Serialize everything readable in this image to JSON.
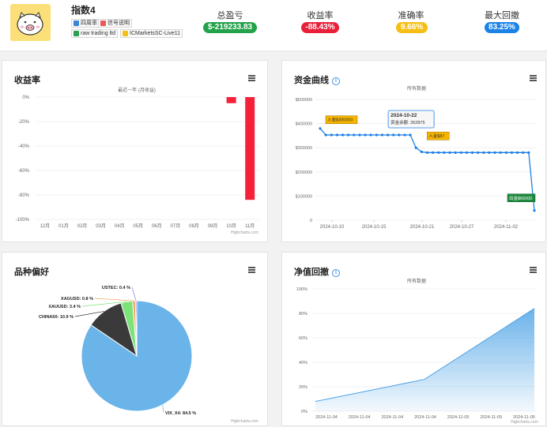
{
  "header": {
    "title": "指数4",
    "tags": [
      "四周率",
      "信号说明",
      "raw trading ltd",
      "ICMarketsSC-Live11"
    ],
    "stats": [
      {
        "label": "总盈亏",
        "value": "$-219233.83",
        "color": "#22a24a"
      },
      {
        "label": "收益率",
        "value": "-88.43%",
        "color": "#e8203a"
      },
      {
        "label": "准确率",
        "value": "9.66%",
        "color": "#f5bf16"
      },
      {
        "label": "最大回撤",
        "value": "83.25%",
        "color": "#1b82e8"
      }
    ]
  },
  "colors": {
    "bar": "#f5203a",
    "line": "#1e7fe6",
    "annotation": "#f7b500",
    "area": "#6ab2ea"
  },
  "icons": {
    "menu": "hamburger-menu-icon",
    "info": "info-circle-icon",
    "avatar": "piggy-mascot"
  },
  "cards": {
    "returns": {
      "title": "收益率",
      "subtitle": "最近一年 (月收益)",
      "credit": "Highcharts.com"
    },
    "equity": {
      "title": "资金曲线",
      "subtitle": "所有数据",
      "credit": "Highcharts.com",
      "annotations": [
        "入金$300000",
        "入金$87",
        "出金$65000"
      ],
      "tooltip": {
        "date": "2024-10-22",
        "label": "资金余额:",
        "value": "352875"
      }
    },
    "pie": {
      "title": "品种偏好",
      "credit": "Highcharts.com"
    },
    "drawdown": {
      "title": "净值回撤",
      "subtitle": "所有数据",
      "credit": "Highcharts.com"
    }
  },
  "chart_data": [
    {
      "type": "bar",
      "title": "收益率",
      "subtitle": "最近一年 (月收益)",
      "categories": [
        "12月",
        "01月",
        "02月",
        "03月",
        "04月",
        "05月",
        "06月",
        "07月",
        "08月",
        "09月",
        "10月",
        "11月"
      ],
      "values": [
        0,
        0,
        0,
        0,
        0,
        0,
        0,
        0,
        0,
        0,
        -5,
        -84
      ],
      "ylim": [
        -100,
        0
      ],
      "yticks": [
        "0%",
        "-20%",
        "-40%",
        "-60%",
        "-80%",
        "-100%"
      ]
    },
    {
      "type": "line",
      "title": "资金曲线",
      "subtitle": "所有数据",
      "xticks": [
        "2024-10-10",
        "2024-10-15",
        "2024-10-21",
        "2024-10-27",
        "2024-11-02"
      ],
      "yticks": [
        "0",
        "$100000",
        "$200000",
        "$300000",
        "$400000",
        "$500000"
      ],
      "ylim": [
        0,
        500000
      ],
      "values": [
        380000,
        352875,
        352875,
        352875,
        352875,
        352875,
        352875,
        352875,
        352875,
        352875,
        352875,
        352875,
        352875,
        352875,
        352875,
        352875,
        352875,
        300000,
        283000,
        280000,
        280000,
        280000,
        280000,
        280000,
        280000,
        280000,
        280000,
        280000,
        280000,
        280000,
        280000,
        280000,
        280000,
        280000,
        280000,
        280000,
        280000,
        280000,
        40000
      ]
    },
    {
      "type": "pie",
      "title": "品种偏好",
      "slices": [
        {
          "name": "VIX_X4",
          "value": 84.5,
          "label": "VIX_X4: 84.5 %",
          "color": "#6ab4ea"
        },
        {
          "name": "CHINA50",
          "value": 10.9,
          "label": "CHINA50: 10.9 %",
          "color": "#3a3a3a"
        },
        {
          "name": "XAUUSD",
          "value": 3.4,
          "label": "XAUUSD: 3.4 %",
          "color": "#7ee27a"
        },
        {
          "name": "XAGUSD",
          "value": 0.8,
          "label": "XAGUSD: 0.8 %",
          "color": "#f2a15a"
        },
        {
          "name": "USTEC",
          "value": 0.4,
          "label": "USTEC: 0.4 %",
          "color": "#8a7de8"
        }
      ]
    },
    {
      "type": "area",
      "title": "净值回撤",
      "subtitle": "所有数据",
      "xticks": [
        "2024-11-04",
        "2024-11-04",
        "2024-11-04",
        "2024-11-04",
        "2024-11-05",
        "2024-11-05",
        "2024-11-05"
      ],
      "yticks": [
        "0%",
        "20%",
        "40%",
        "60%",
        "80%",
        "100%"
      ],
      "ylim": [
        0,
        100
      ],
      "values": [
        8,
        26,
        84
      ]
    }
  ]
}
